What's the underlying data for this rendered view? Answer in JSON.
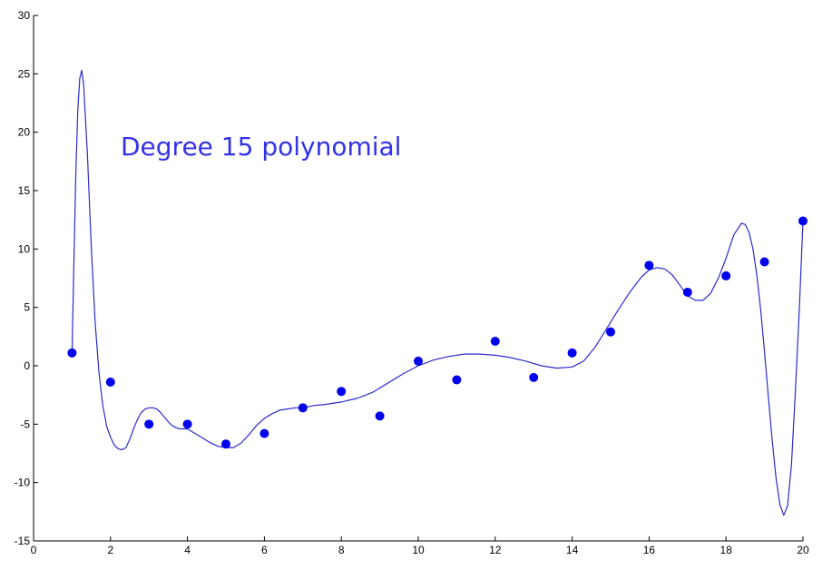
{
  "chart_data": {
    "type": "scatter",
    "title": "",
    "xlabel": "",
    "ylabel": "",
    "xlim": [
      0,
      20
    ],
    "ylim": [
      -15,
      30
    ],
    "xticks": [
      0,
      2,
      4,
      6,
      8,
      10,
      12,
      14,
      16,
      18,
      20
    ],
    "yticks": [
      -15,
      -10,
      -5,
      0,
      5,
      10,
      15,
      20,
      25,
      30
    ],
    "grid": false,
    "legend": "none",
    "annotation": "Degree 15 polynomial",
    "colors": {
      "points": "#0000ee",
      "curve": "#2b2bcc",
      "annotation": "#3333e6",
      "axes": "#000000"
    },
    "series": [
      {
        "kind": "points",
        "x": [
          1,
          2,
          3,
          4,
          5,
          6,
          7,
          8,
          9,
          10,
          11,
          12,
          13,
          14,
          15,
          16,
          17,
          18,
          19,
          20
        ],
        "y": [
          1.1,
          -1.4,
          -5.0,
          -5.0,
          -6.7,
          -5.8,
          -3.6,
          -2.2,
          -4.3,
          0.4,
          -1.2,
          2.1,
          -1.0,
          1.1,
          2.9,
          8.6,
          6.3,
          7.7,
          8.9,
          12.4
        ]
      },
      {
        "kind": "line",
        "x": [
          1.0,
          1.05,
          1.1,
          1.15,
          1.2,
          1.25,
          1.3,
          1.4,
          1.5,
          1.6,
          1.7,
          1.8,
          1.9,
          2.0,
          2.1,
          2.2,
          2.3,
          2.4,
          2.5,
          2.6,
          2.7,
          2.8,
          2.9,
          3.0,
          3.1,
          3.2,
          3.3,
          3.4,
          3.5,
          3.6,
          3.7,
          3.8,
          3.9,
          4.0,
          4.2,
          4.4,
          4.6,
          4.8,
          5.0,
          5.2,
          5.4,
          5.6,
          5.8,
          6.0,
          6.2,
          6.4,
          6.6,
          6.8,
          7.0,
          7.3,
          7.6,
          8.0,
          8.4,
          8.8,
          9.2,
          9.6,
          10.0,
          10.4,
          10.8,
          11.2,
          11.6,
          12.0,
          12.4,
          12.8,
          13.2,
          13.6,
          14.0,
          14.3,
          14.6,
          14.9,
          15.2,
          15.5,
          15.8,
          16.0,
          16.2,
          16.4,
          16.6,
          16.8,
          17.0,
          17.2,
          17.4,
          17.6,
          17.8,
          18.0,
          18.2,
          18.4,
          18.5,
          18.6,
          18.7,
          18.8,
          18.9,
          19.0,
          19.1,
          19.2,
          19.3,
          19.4,
          19.5,
          19.6,
          19.7,
          19.8,
          19.9,
          20.0
        ],
        "y": [
          1.1,
          9.0,
          16.5,
          22.0,
          24.6,
          25.3,
          24.2,
          18.0,
          10.2,
          3.8,
          -0.6,
          -3.4,
          -5.2,
          -6.1,
          -6.8,
          -7.1,
          -7.2,
          -7.0,
          -6.3,
          -5.4,
          -4.6,
          -4.0,
          -3.7,
          -3.6,
          -3.6,
          -3.7,
          -4.0,
          -4.4,
          -4.8,
          -5.1,
          -5.3,
          -5.4,
          -5.4,
          -5.4,
          -5.8,
          -6.2,
          -6.6,
          -6.9,
          -7.0,
          -7.0,
          -6.6,
          -5.9,
          -5.1,
          -4.5,
          -4.1,
          -3.8,
          -3.7,
          -3.6,
          -3.6,
          -3.4,
          -3.3,
          -3.1,
          -2.8,
          -2.3,
          -1.5,
          -0.7,
          0.0,
          0.5,
          0.8,
          1.0,
          1.0,
          0.9,
          0.7,
          0.4,
          0.0,
          -0.2,
          -0.1,
          0.4,
          1.6,
          3.2,
          4.8,
          6.3,
          7.6,
          8.2,
          8.4,
          8.3,
          7.8,
          6.9,
          6.0,
          5.6,
          5.6,
          6.2,
          7.5,
          9.2,
          11.2,
          12.2,
          12.1,
          11.4,
          10.0,
          7.8,
          4.8,
          1.2,
          -2.6,
          -6.4,
          -9.6,
          -11.9,
          -12.8,
          -12.0,
          -8.5,
          -2.4,
          4.5,
          12.4
        ]
      }
    ]
  }
}
